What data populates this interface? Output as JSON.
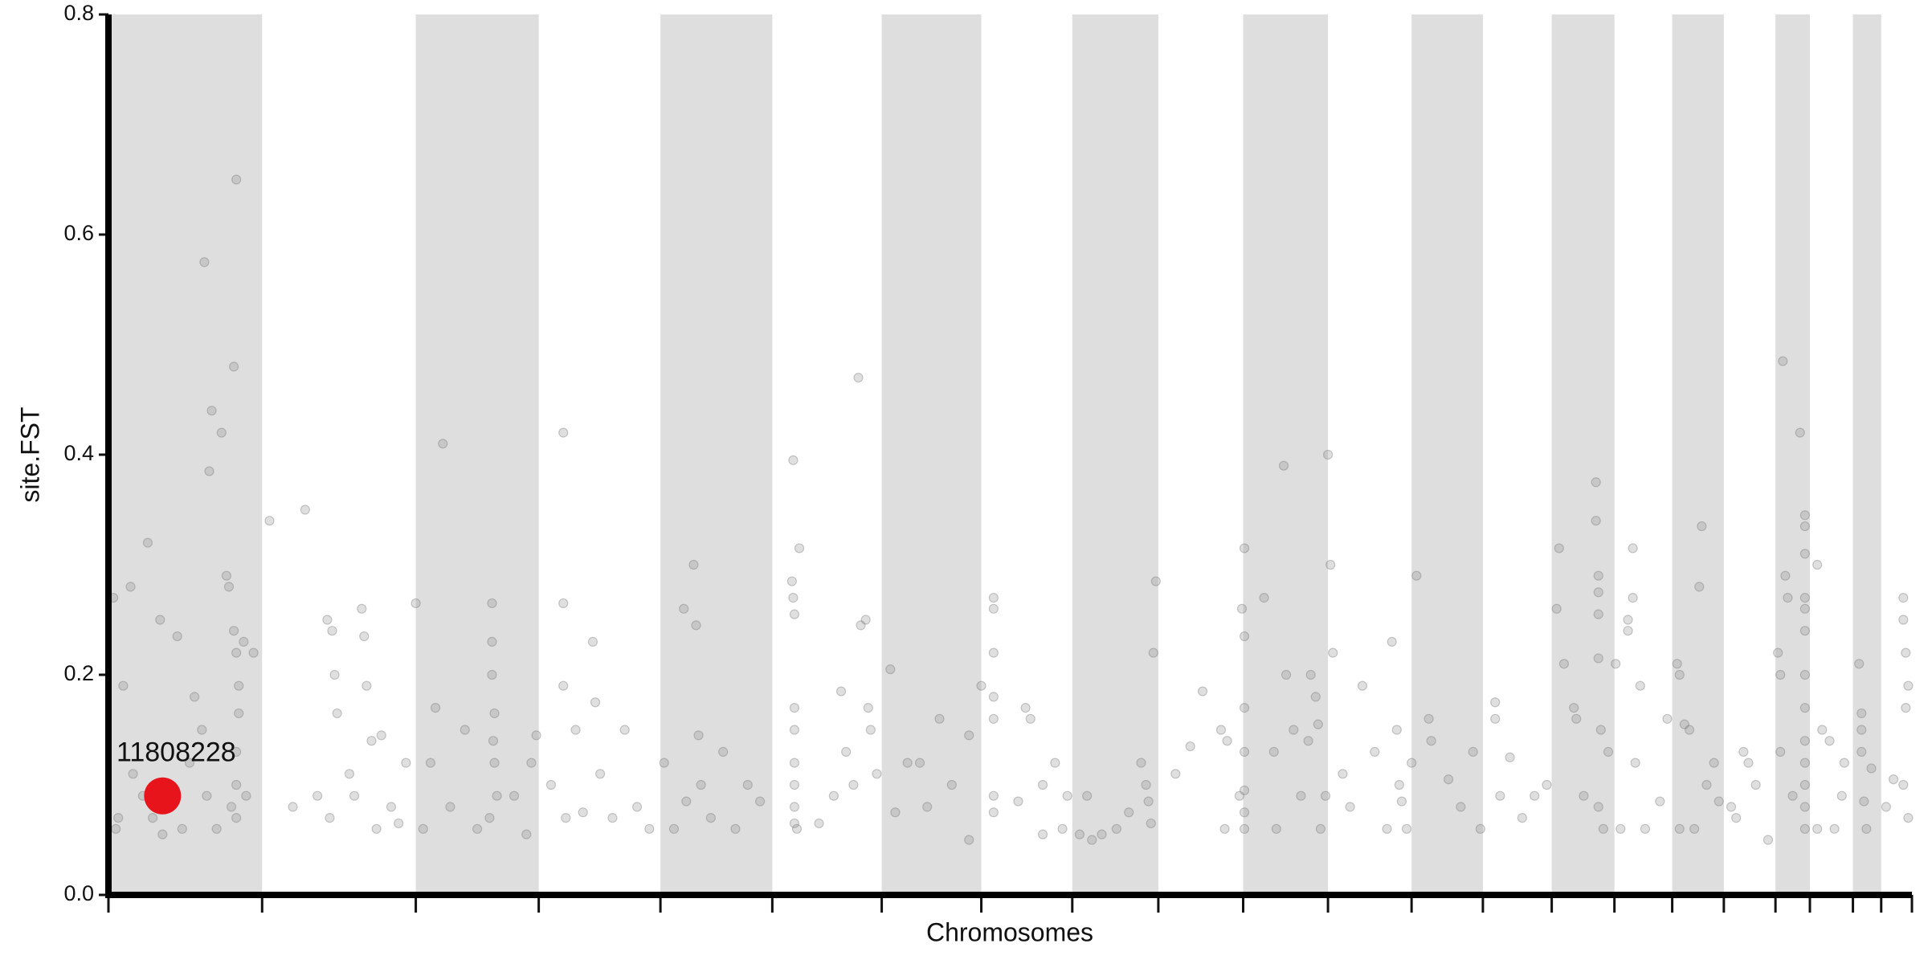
{
  "chart_data": {
    "type": "scatter",
    "ylabel": "site.FST",
    "xlabel": "Chromosomes",
    "xlim": [
      0,
      1467
    ],
    "ylim": [
      0,
      0.8
    ],
    "yticks": [
      {
        "value": 0,
        "label": "0.0"
      },
      0.2,
      0.4,
      0.6,
      0.8
    ],
    "xticks": [
      0,
      125,
      250,
      350,
      449,
      540,
      629,
      710,
      784,
      854,
      923,
      992,
      1060,
      1118,
      1174,
      1225,
      1272,
      1314,
      1356,
      1384,
      1419,
      1442,
      1467
    ],
    "bands": [
      [
        0,
        125
      ],
      [
        250,
        350
      ],
      [
        449,
        540
      ],
      [
        629,
        710
      ],
      [
        784,
        854
      ],
      [
        923,
        992
      ],
      [
        1060,
        1118
      ],
      [
        1174,
        1225
      ],
      [
        1272,
        1314
      ],
      [
        1356,
        1384
      ],
      [
        1419,
        1442
      ]
    ],
    "band_color": "#dedede",
    "series": [
      {
        "color": "#8c8c8c",
        "x": [
          4,
          8,
          12,
          18,
          32,
          42,
          56,
          78,
          82,
          84,
          92,
          96,
          98,
          102,
          104,
          102,
          104,
          106,
          110,
          118,
          6,
          20,
          36,
          60,
          70,
          76,
          80,
          88,
          100,
          104,
          104,
          104,
          106,
          112,
          28,
          44,
          50,
          66,
          131,
          160,
          178,
          182,
          180,
          184,
          186,
          206,
          208,
          210,
          214,
          222,
          230,
          236,
          242,
          150,
          196,
          200,
          170,
          218,
          250,
          272,
          262,
          266,
          278,
          290,
          300,
          312,
          312,
          312,
          314,
          313,
          314,
          316,
          310,
          330,
          344,
          348,
          256,
          340,
          370,
          370,
          370,
          372,
          380,
          394,
          396,
          400,
          410,
          420,
          430,
          440,
          360,
          386,
          452,
          468,
          470,
          476,
          478,
          480,
          482,
          490,
          500,
          520,
          530,
          460,
          510,
          557,
          556,
          557,
          558,
          562,
          558,
          558,
          558,
          558,
          558,
          558,
          560,
          578,
          600,
          610,
          612,
          616,
          618,
          620,
          596,
          590,
          606,
          625,
          636,
          640,
          650,
          660,
          676,
          686,
          700,
          710,
          720,
          720,
          720,
          720,
          720,
          720,
          720,
          700,
          666,
          746,
          750,
          760,
          770,
          776,
          780,
          790,
          800,
          760,
          740,
          796,
          808,
          820,
          830,
          844,
          846,
          848,
          850,
          852,
          840,
          868,
          880,
          890,
          905,
          910,
          924,
          922,
          924,
          924,
          924,
          924,
          924,
          924,
          920,
          908,
          940,
          948,
          956,
          958,
          964,
          976,
          978,
          982,
          984,
          992,
          994,
          996,
          986,
          970,
          950,
          990,
          1004,
          1010,
          1020,
          1030,
          1044,
          1048,
          1050,
          1052,
          1040,
          1056,
          1060,
          1064,
          1074,
          1076,
          1090,
          1100,
          1116,
          1110,
          1128,
          1128,
          1140,
          1150,
          1170,
          1132,
          1160,
          1180,
          1178,
          1184,
          1192,
          1194,
          1210,
          1210,
          1212,
          1212,
          1212,
          1212,
          1214,
          1212,
          1216,
          1200,
          1220,
          1226,
          1236,
          1236,
          1240,
          1240,
          1246,
          1250,
          1262,
          1268,
          1230,
          1242,
          1276,
          1278,
          1282,
          1286,
          1294,
          1296,
          1300,
          1306,
          1310,
          1278,
          1290,
          1324,
          1330,
          1334,
          1340,
          1350,
          1320,
          1358,
          1360,
          1362,
          1364,
          1366,
          1376,
          1380,
          1380,
          1380,
          1380,
          1380,
          1380,
          1380,
          1380,
          1380,
          1380,
          1380,
          1380,
          1380,
          1370,
          1360,
          1390,
          1394,
          1400,
          1410,
          1412,
          1404,
          1390,
          1424,
          1426,
          1426,
          1426,
          1428,
          1430,
          1434,
          1452,
          1460,
          1460,
          1462,
          1464,
          1462,
          1464,
          1460,
          1446
        ],
        "values": [
          0.27,
          0.07,
          0.19,
          0.28,
          0.32,
          0.25,
          0.235,
          0.575,
          0.385,
          0.44,
          0.42,
          0.29,
          0.28,
          0.48,
          0.65,
          0.24,
          0.22,
          0.165,
          0.23,
          0.22,
          0.06,
          0.11,
          0.07,
          0.06,
          0.18,
          0.15,
          0.09,
          0.06,
          0.08,
          0.07,
          0.1,
          0.13,
          0.19,
          0.09,
          0.09,
          0.055,
          0.1,
          0.12,
          0.34,
          0.35,
          0.25,
          0.24,
          0.07,
          0.2,
          0.165,
          0.26,
          0.235,
          0.19,
          0.14,
          0.145,
          0.08,
          0.065,
          0.12,
          0.08,
          0.11,
          0.09,
          0.09,
          0.06,
          0.265,
          0.41,
          0.12,
          0.17,
          0.08,
          0.15,
          0.06,
          0.265,
          0.23,
          0.2,
          0.165,
          0.14,
          0.12,
          0.09,
          0.07,
          0.09,
          0.12,
          0.145,
          0.06,
          0.055,
          0.42,
          0.265,
          0.19,
          0.07,
          0.15,
          0.23,
          0.175,
          0.11,
          0.07,
          0.15,
          0.08,
          0.06,
          0.1,
          0.075,
          0.12,
          0.26,
          0.085,
          0.3,
          0.245,
          0.145,
          0.1,
          0.07,
          0.13,
          0.1,
          0.085,
          0.06,
          0.06,
          0.395,
          0.285,
          0.27,
          0.255,
          0.315,
          0.17,
          0.15,
          0.12,
          0.1,
          0.08,
          0.065,
          0.06,
          0.065,
          0.13,
          0.47,
          0.245,
          0.25,
          0.17,
          0.15,
          0.185,
          0.09,
          0.1,
          0.11,
          0.205,
          0.075,
          0.12,
          0.12,
          0.16,
          0.1,
          0.145,
          0.19,
          0.27,
          0.26,
          0.22,
          0.18,
          0.16,
          0.09,
          0.075,
          0.05,
          0.08,
          0.17,
          0.16,
          0.1,
          0.12,
          0.06,
          0.09,
          0.055,
          0.05,
          0.055,
          0.085,
          0.09,
          0.055,
          0.06,
          0.075,
          0.1,
          0.085,
          0.065,
          0.22,
          0.285,
          0.12,
          0.11,
          0.135,
          0.185,
          0.15,
          0.14,
          0.315,
          0.26,
          0.235,
          0.17,
          0.13,
          0.095,
          0.075,
          0.06,
          0.09,
          0.06,
          0.27,
          0.13,
          0.39,
          0.2,
          0.15,
          0.14,
          0.2,
          0.18,
          0.155,
          0.4,
          0.3,
          0.22,
          0.06,
          0.09,
          0.06,
          0.09,
          0.11,
          0.08,
          0.19,
          0.13,
          0.23,
          0.15,
          0.1,
          0.085,
          0.06,
          0.06,
          0.12,
          0.29,
          0.16,
          0.14,
          0.105,
          0.08,
          0.06,
          0.13,
          0.175,
          0.16,
          0.125,
          0.07,
          0.1,
          0.09,
          0.09,
          0.315,
          0.26,
          0.21,
          0.17,
          0.16,
          0.375,
          0.34,
          0.29,
          0.275,
          0.255,
          0.215,
          0.15,
          0.08,
          0.06,
          0.09,
          0.13,
          0.21,
          0.24,
          0.25,
          0.315,
          0.27,
          0.19,
          0.06,
          0.085,
          0.16,
          0.06,
          0.12,
          0.21,
          0.2,
          0.155,
          0.15,
          0.28,
          0.335,
          0.1,
          0.12,
          0.085,
          0.06,
          0.06,
          0.07,
          0.13,
          0.12,
          0.1,
          0.05,
          0.08,
          0.22,
          0.2,
          0.485,
          0.29,
          0.27,
          0.42,
          0.345,
          0.335,
          0.31,
          0.27,
          0.26,
          0.24,
          0.2,
          0.17,
          0.14,
          0.12,
          0.1,
          0.08,
          0.06,
          0.09,
          0.13,
          0.3,
          0.15,
          0.14,
          0.09,
          0.12,
          0.06,
          0.06,
          0.21,
          0.165,
          0.15,
          0.13,
          0.085,
          0.06,
          0.115,
          0.105,
          0.27,
          0.25,
          0.22,
          0.19,
          0.17,
          0.07,
          0.1,
          0.08
        ]
      }
    ],
    "highlight": {
      "x": 44,
      "y": 0.09,
      "label": "11808228",
      "color": "#e8141c"
    }
  }
}
